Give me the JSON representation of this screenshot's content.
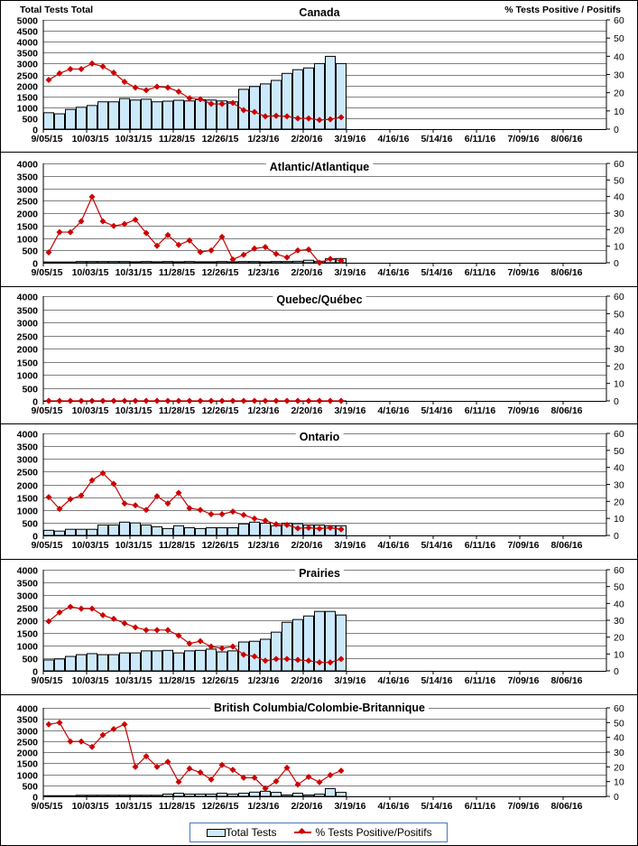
{
  "colors": {
    "bar_fill": "#cce9fb",
    "bar_stroke": "#000000",
    "line": "#cc0000",
    "grid": "#808080"
  },
  "left_axis_title": "Total Tests Total",
  "right_axis_title": "% Tests Positive / Positifs",
  "legend": {
    "bars": "Total Tests",
    "line": "% Tests Positive/Positifs"
  },
  "chart_data": [
    {
      "type": "bar+line",
      "title": "Canada",
      "ylim": [
        0,
        5000
      ],
      "ystep": 500,
      "y2lim": [
        0,
        60
      ],
      "y2step": 10,
      "total_weeks": 52,
      "x_tick_labels": [
        "9/05/15",
        "10/03/15",
        "10/31/15",
        "11/28/15",
        "12/26/15",
        "1/23/16",
        "2/20/16",
        "3/19/16",
        "4/16/16",
        "5/14/16",
        "6/11/16",
        "7/09/16",
        "8/06/16"
      ],
      "series": [
        {
          "name": "Total Tests",
          "axis": "left",
          "values": [
            750,
            700,
            900,
            1000,
            1080,
            1250,
            1250,
            1400,
            1330,
            1370,
            1250,
            1280,
            1320,
            1290,
            1350,
            1330,
            1290,
            1250,
            1820,
            1950,
            2070,
            2230,
            2550,
            2720,
            2800,
            3000,
            3330,
            3000
          ]
        },
        {
          "name": "% Tests Positive/Positifs",
          "axis": "right",
          "values": [
            27,
            30.6,
            33,
            33,
            36,
            34.4,
            31,
            26,
            22.8,
            21.4,
            23.3,
            22.8,
            20.6,
            17,
            16.4,
            13.9,
            13.8,
            14.4,
            10.4,
            9.4,
            7,
            7.3,
            7,
            5.9,
            5.9,
            5,
            5.4,
            6.5
          ]
        }
      ]
    },
    {
      "type": "bar+line",
      "title": "Atlantic/Atlantique",
      "ylim": [
        0,
        4000
      ],
      "ystep": 500,
      "y2lim": [
        0,
        60
      ],
      "y2step": 10,
      "total_weeks": 52,
      "x_tick_labels": [
        "9/05/15",
        "10/03/15",
        "10/31/15",
        "11/28/15",
        "12/26/15",
        "1/23/16",
        "2/20/16",
        "3/19/16",
        "4/16/16",
        "5/14/16",
        "6/11/16",
        "7/09/16",
        "8/06/16"
      ],
      "series": [
        {
          "name": "Total Tests",
          "axis": "left",
          "values": [
            30,
            30,
            30,
            50,
            50,
            50,
            50,
            50,
            40,
            50,
            40,
            50,
            40,
            50,
            40,
            40,
            50,
            40,
            50,
            50,
            40,
            50,
            50,
            60,
            100,
            60,
            160,
            170
          ]
        },
        {
          "name": "% Tests Positive/Positifs",
          "axis": "right",
          "values": [
            6.3,
            18.5,
            18.5,
            25,
            39.8,
            25,
            22.2,
            23.4,
            26,
            17.9,
            10.2,
            16.7,
            10.8,
            13.4,
            6.5,
            7.4,
            15.6,
            2,
            4.8,
            8.6,
            9.5,
            5.3,
            3.2,
            7.4,
            8,
            0,
            2.3,
            1.2
          ]
        }
      ]
    },
    {
      "type": "bar+line",
      "title": "Quebec/Québec",
      "ylim": [
        0,
        4000
      ],
      "ystep": 500,
      "y2lim": [
        0,
        60
      ],
      "y2step": 10,
      "total_weeks": 52,
      "x_tick_labels": [
        "9/05/15",
        "10/03/15",
        "10/31/15",
        "11/28/15",
        "12/26/15",
        "1/23/16",
        "2/20/16",
        "3/19/16",
        "4/16/16",
        "5/14/16",
        "6/11/16",
        "7/09/16",
        "8/06/16"
      ],
      "series": [
        {
          "name": "Total Tests",
          "axis": "left",
          "values": [
            0,
            0,
            0,
            0,
            0,
            0,
            0,
            0,
            0,
            0,
            0,
            0,
            0,
            0,
            0,
            0,
            0,
            0,
            0,
            0,
            0,
            0,
            0,
            0,
            0,
            0,
            0,
            0
          ]
        },
        {
          "name": "% Tests Positive/Positifs",
          "axis": "right",
          "values": [
            0,
            0,
            0,
            0,
            0,
            0,
            0,
            0,
            0,
            0,
            0,
            0,
            0,
            0,
            0,
            0,
            0,
            0,
            0,
            0,
            0,
            0,
            0,
            0,
            0,
            0,
            0,
            0
          ]
        }
      ]
    },
    {
      "type": "bar+line",
      "title": "Ontario",
      "ylim": [
        0,
        4000
      ],
      "ystep": 500,
      "y2lim": [
        0,
        60
      ],
      "y2step": 10,
      "total_weeks": 52,
      "x_tick_labels": [
        "9/05/15",
        "10/03/15",
        "10/31/15",
        "11/28/15",
        "12/26/15",
        "1/23/16",
        "2/20/16",
        "3/19/16",
        "4/16/16",
        "5/14/16",
        "6/11/16",
        "7/09/16",
        "8/06/16"
      ],
      "series": [
        {
          "name": "Total Tests",
          "axis": "left",
          "values": [
            200,
            170,
            240,
            240,
            240,
            410,
            410,
            520,
            490,
            410,
            340,
            270,
            380,
            300,
            270,
            300,
            300,
            300,
            450,
            520,
            480,
            380,
            480,
            460,
            410,
            410,
            380,
            380
          ]
        },
        {
          "name": "% Tests Positive/Positifs",
          "axis": "right",
          "values": [
            22.5,
            15.6,
            21.3,
            23.4,
            32.4,
            36.6,
            30.3,
            18.8,
            17.7,
            15,
            23,
            18.8,
            25,
            16,
            15,
            12.5,
            12.5,
            14,
            12,
            9.9,
            8.7,
            6.6,
            6.2,
            4.2,
            4.5,
            4,
            4.5,
            3.6
          ]
        }
      ]
    },
    {
      "type": "bar+line",
      "title": "Prairies",
      "ylim": [
        0,
        4000
      ],
      "ystep": 500,
      "y2lim": [
        0,
        60
      ],
      "y2step": 10,
      "total_weeks": 52,
      "x_tick_labels": [
        "9/05/15",
        "10/03/15",
        "10/31/15",
        "11/28/15",
        "12/26/15",
        "1/23/16",
        "2/20/16",
        "3/19/16",
        "4/16/16",
        "5/14/16",
        "6/11/16",
        "7/09/16",
        "8/06/16"
      ],
      "series": [
        {
          "name": "Total Tests",
          "axis": "left",
          "values": [
            430,
            470,
            570,
            640,
            680,
            640,
            640,
            710,
            710,
            790,
            790,
            810,
            710,
            790,
            810,
            860,
            750,
            790,
            1140,
            1170,
            1250,
            1530,
            1920,
            2030,
            2170,
            2350,
            2350,
            2210
          ]
        },
        {
          "name": "% Tests Positive/Positifs",
          "axis": "right",
          "values": [
            29.4,
            34.7,
            38,
            36.9,
            36.9,
            33,
            30.9,
            28.2,
            25.8,
            24.2,
            24.2,
            24.2,
            20.9,
            16.2,
            17.6,
            14.4,
            13.4,
            14.4,
            9.6,
            8.6,
            6,
            7,
            7,
            6.5,
            6,
            5,
            5,
            7
          ]
        }
      ]
    },
    {
      "type": "bar+line",
      "title": "British Columbia/Colombie-Britannique",
      "ylim": [
        0,
        4000
      ],
      "ystep": 500,
      "y2lim": [
        0,
        60
      ],
      "y2step": 10,
      "total_weeks": 52,
      "x_tick_labels": [
        "9/05/15",
        "10/03/15",
        "10/31/15",
        "11/28/15",
        "12/26/15",
        "1/23/16",
        "2/20/16",
        "3/19/16",
        "4/16/16",
        "5/14/16",
        "6/11/16",
        "7/09/16",
        "8/06/16"
      ],
      "series": [
        {
          "name": "Total Tests",
          "axis": "left",
          "values": [
            30,
            30,
            30,
            50,
            50,
            50,
            50,
            50,
            50,
            50,
            50,
            100,
            140,
            100,
            100,
            100,
            140,
            100,
            140,
            190,
            230,
            180,
            60,
            140,
            60,
            100,
            350,
            180
          ]
        },
        {
          "name": "% Tests Positive/Positifs",
          "axis": "right",
          "values": [
            48.8,
            50,
            37.2,
            37.2,
            33.5,
            41.6,
            45.6,
            48.8,
            20,
            27.2,
            20,
            23.4,
            9.8,
            18.8,
            16.2,
            11.4,
            21.3,
            18,
            12.6,
            12.6,
            5.3,
            10.2,
            19.4,
            8,
            13.2,
            9.6,
            14.4,
            17.4
          ]
        }
      ]
    }
  ]
}
